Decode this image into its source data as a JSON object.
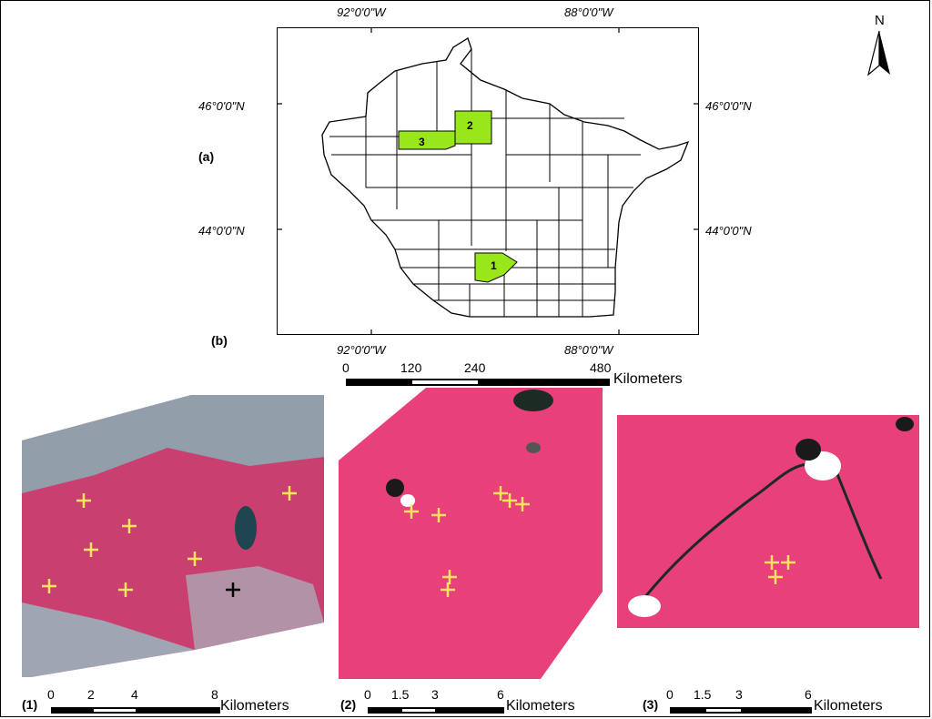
{
  "figure": {
    "panel_labels": {
      "a": "(a)",
      "b": "(b)"
    },
    "map": {
      "lon_top": [
        "92°0'0\"W",
        "88°0'0\"W"
      ],
      "lon_bottom": [
        "92°0'0\"W",
        "88°0'0\"W"
      ],
      "lat_left": [
        "46°0'0\"N",
        "44°0'0\"N"
      ],
      "lat_right": [
        "46°0'0\"N",
        "44°0'0\"N"
      ],
      "north_label": "N",
      "highlight_color": "#99e61a",
      "highlight_regions": [
        "1",
        "2",
        "3"
      ],
      "scale": {
        "ticks": [
          "0",
          "120",
          "240",
          "480"
        ],
        "unit": "Kilometers"
      }
    },
    "images": [
      {
        "label": "(1)",
        "scale_ticks": [
          "0",
          "2",
          "4",
          "8"
        ],
        "unit": "Kilometers"
      },
      {
        "label": "(2)",
        "scale_ticks": [
          "0",
          "1.5",
          "3",
          "6"
        ],
        "unit": "Kilometers"
      },
      {
        "label": "(3)",
        "scale_ticks": [
          "0",
          "1.5",
          "3",
          "6"
        ],
        "unit": "Kilometers"
      }
    ],
    "colors": {
      "plot_marker": "#ffe45c",
      "plot_marker_alt": "#000000",
      "vegetation": "#e8407a",
      "cloud": "#ffffff"
    }
  }
}
